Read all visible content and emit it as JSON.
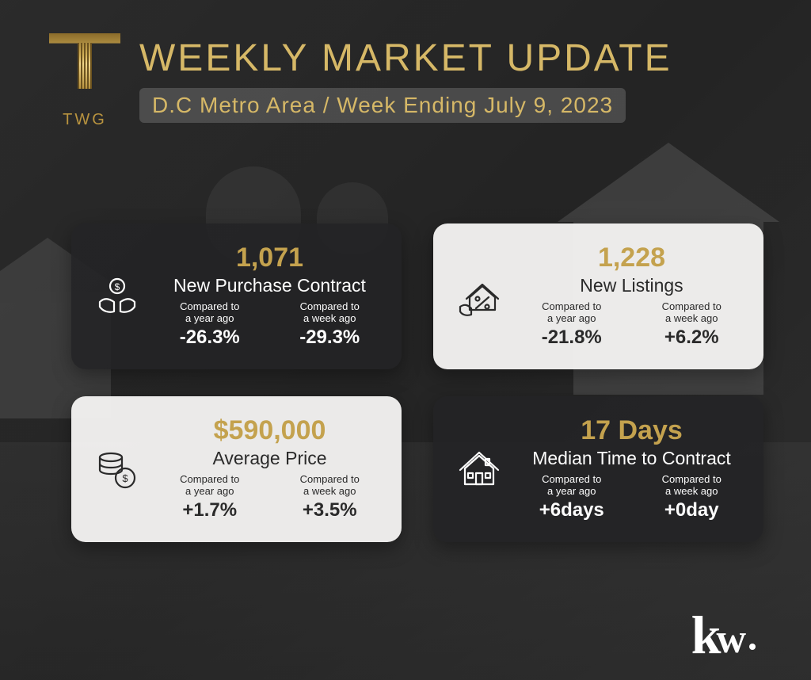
{
  "colors": {
    "gold": "#c4a24e",
    "gold_light": "#d6b867",
    "card_dark_bg": "rgba(35,35,38,0.9)",
    "card_light_bg": "rgba(244,243,241,0.96)",
    "text_light": "#fdfdfd",
    "text_dark": "#2a2a2a"
  },
  "brand": {
    "monogram": "TWG",
    "footer_logo": "kw"
  },
  "header": {
    "title": "WEEKLY MARKET UPDATE",
    "subtitle": "D.C Metro Area / Week Ending July 9, 2023"
  },
  "compare_labels": {
    "year": "Compared to\na year ago",
    "week": "Compared to\na week ago"
  },
  "cards": [
    {
      "id": "new-purchase-contract",
      "theme": "dark",
      "icon": "hands-coin",
      "value": "1,071",
      "label": "New Purchase Contract",
      "year_delta": "-26.3%",
      "week_delta": "-29.3%"
    },
    {
      "id": "new-listings",
      "theme": "light",
      "icon": "house-percent",
      "value": "1,228",
      "label": "New Listings",
      "year_delta": "-21.8%",
      "week_delta": "+6.2%"
    },
    {
      "id": "average-price",
      "theme": "light",
      "icon": "coins-stack",
      "value": "$590,000",
      "label": "Average Price",
      "year_delta": "+1.7%",
      "week_delta": "+3.5%"
    },
    {
      "id": "median-time-to-contract",
      "theme": "dark",
      "icon": "house-simple",
      "value": "17 Days",
      "label": "Median Time to Contract",
      "year_delta": "+6days",
      "week_delta": "+0day"
    }
  ]
}
